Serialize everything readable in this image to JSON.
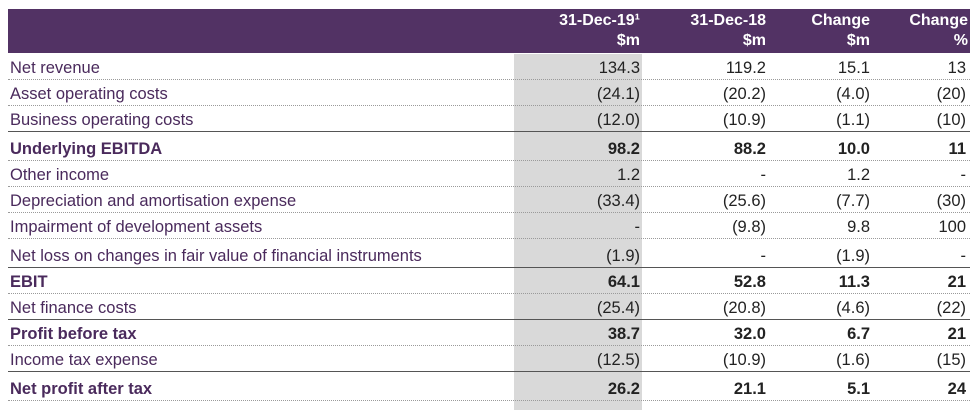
{
  "headers": [
    {
      "line1": "31-Dec-19¹",
      "line2": "$m"
    },
    {
      "line1": "31-Dec-18",
      "line2": "$m"
    },
    {
      "line1": "Change",
      "line2": "$m"
    },
    {
      "line1": "Change",
      "line2": "%"
    }
  ],
  "rows": [
    {
      "label": "Net revenue",
      "values": [
        "134.3",
        "119.2",
        "15.1",
        "13"
      ]
    },
    {
      "label": "Asset operating costs",
      "values": [
        "(24.1)",
        "(20.2)",
        "(4.0)",
        "(20)"
      ]
    },
    {
      "label": "Business operating costs",
      "values": [
        "(12.0)",
        "(10.9)",
        "(1.1)",
        "(10)"
      ]
    },
    {
      "label": "Underlying EBITDA",
      "values": [
        "98.2",
        "88.2",
        "10.0",
        "11"
      ]
    },
    {
      "label": "Other income",
      "values": [
        "1.2",
        "-",
        "1.2",
        "-"
      ]
    },
    {
      "label": "Depreciation and amortisation expense",
      "values": [
        "(33.4)",
        "(25.6)",
        "(7.7)",
        "(30)"
      ]
    },
    {
      "label": "Impairment of development assets",
      "values": [
        "-",
        "(9.8)",
        "9.8",
        "100"
      ]
    },
    {
      "label": "Net loss on changes in fair value of financial instruments",
      "values": [
        "(1.9)",
        "-",
        "(1.9)",
        "-"
      ]
    },
    {
      "label": "EBIT",
      "values": [
        "64.1",
        "52.8",
        "11.3",
        "21"
      ]
    },
    {
      "label": "Net finance costs",
      "values": [
        "(25.4)",
        "(20.8)",
        "(4.6)",
        "(22)"
      ]
    },
    {
      "label": "Profit before tax",
      "values": [
        "38.7",
        "32.0",
        "6.7",
        "21"
      ]
    },
    {
      "label": "Income tax expense",
      "values": [
        "(12.5)",
        "(10.9)",
        "(1.6)",
        "(15)"
      ]
    },
    {
      "label": "Net profit after tax",
      "values": [
        "26.2",
        "21.1",
        "5.1",
        "24"
      ]
    }
  ]
}
